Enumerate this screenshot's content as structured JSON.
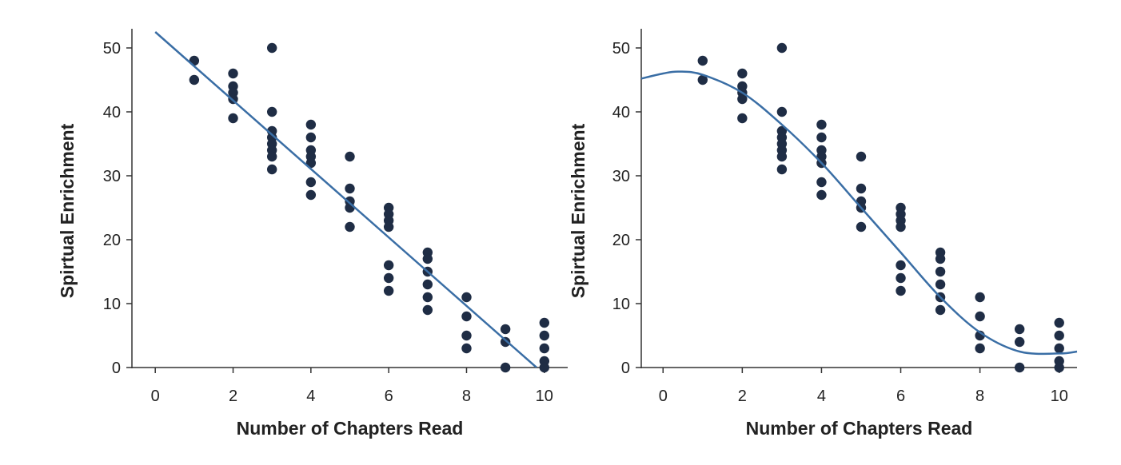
{
  "colors": {
    "point": "#1f2d45",
    "fit_line": "#3a6ea5",
    "axis": "#333333"
  },
  "chart_data": [
    {
      "type": "scatter",
      "fit": "linear",
      "title": "",
      "xlabel": "Number of Chapters Read",
      "ylabel": "Spirtual Enrichment",
      "xlim": [
        -0.6,
        10.6
      ],
      "ylim": [
        0,
        53
      ],
      "x_ticks": [
        0,
        2,
        4,
        6,
        8,
        10
      ],
      "y_ticks": [
        0,
        10,
        20,
        30,
        40,
        50
      ],
      "grid": false,
      "points": [
        [
          1,
          48
        ],
        [
          1,
          45
        ],
        [
          2,
          46
        ],
        [
          2,
          44
        ],
        [
          2,
          43
        ],
        [
          2,
          42
        ],
        [
          2,
          39
        ],
        [
          3,
          50
        ],
        [
          3,
          40
        ],
        [
          3,
          37
        ],
        [
          3,
          36
        ],
        [
          3,
          35
        ],
        [
          3,
          34
        ],
        [
          3,
          33
        ],
        [
          3,
          31
        ],
        [
          4,
          38
        ],
        [
          4,
          36
        ],
        [
          4,
          34
        ],
        [
          4,
          33
        ],
        [
          4,
          32
        ],
        [
          4,
          29
        ],
        [
          4,
          27
        ],
        [
          5,
          33
        ],
        [
          5,
          28
        ],
        [
          5,
          26
        ],
        [
          5,
          25
        ],
        [
          5,
          22
        ],
        [
          6,
          25
        ],
        [
          6,
          24
        ],
        [
          6,
          23
        ],
        [
          6,
          22
        ],
        [
          6,
          16
        ],
        [
          6,
          14
        ],
        [
          6,
          12
        ],
        [
          7,
          18
        ],
        [
          7,
          17
        ],
        [
          7,
          15
        ],
        [
          7,
          13
        ],
        [
          7,
          11
        ],
        [
          7,
          9
        ],
        [
          8,
          11
        ],
        [
          8,
          8
        ],
        [
          8,
          5
        ],
        [
          8,
          3
        ],
        [
          9,
          6
        ],
        [
          9,
          4
        ],
        [
          9,
          0
        ],
        [
          10,
          7
        ],
        [
          10,
          5
        ],
        [
          10,
          3
        ],
        [
          10,
          1
        ],
        [
          10,
          0
        ]
      ],
      "fit_line": {
        "x": [
          0,
          9.8
        ],
        "y": [
          52.5,
          0
        ]
      }
    },
    {
      "type": "scatter",
      "fit": "cubic",
      "title": "",
      "xlabel": "Number of Chapters Read",
      "ylabel": "Spirtual Enrichment",
      "xlim": [
        -0.55,
        10.45
      ],
      "ylim": [
        0,
        53
      ],
      "x_ticks": [
        0,
        2,
        4,
        6,
        8,
        10
      ],
      "y_ticks": [
        0,
        10,
        20,
        30,
        40,
        50
      ],
      "grid": false,
      "points": [
        [
          1,
          48
        ],
        [
          1,
          45
        ],
        [
          2,
          46
        ],
        [
          2,
          44
        ],
        [
          2,
          43
        ],
        [
          2,
          42
        ],
        [
          2,
          39
        ],
        [
          3,
          50
        ],
        [
          3,
          40
        ],
        [
          3,
          37
        ],
        [
          3,
          36
        ],
        [
          3,
          35
        ],
        [
          3,
          34
        ],
        [
          3,
          33
        ],
        [
          3,
          31
        ],
        [
          4,
          38
        ],
        [
          4,
          36
        ],
        [
          4,
          34
        ],
        [
          4,
          33
        ],
        [
          4,
          32
        ],
        [
          4,
          29
        ],
        [
          4,
          27
        ],
        [
          5,
          33
        ],
        [
          5,
          28
        ],
        [
          5,
          26
        ],
        [
          5,
          25
        ],
        [
          5,
          22
        ],
        [
          6,
          25
        ],
        [
          6,
          24
        ],
        [
          6,
          23
        ],
        [
          6,
          22
        ],
        [
          6,
          16
        ],
        [
          6,
          14
        ],
        [
          6,
          12
        ],
        [
          7,
          18
        ],
        [
          7,
          17
        ],
        [
          7,
          15
        ],
        [
          7,
          13
        ],
        [
          7,
          11
        ],
        [
          7,
          9
        ],
        [
          8,
          11
        ],
        [
          8,
          8
        ],
        [
          8,
          5
        ],
        [
          8,
          3
        ],
        [
          9,
          6
        ],
        [
          9,
          4
        ],
        [
          9,
          0
        ],
        [
          10,
          7
        ],
        [
          10,
          5
        ],
        [
          10,
          3
        ],
        [
          10,
          1
        ],
        [
          10,
          0
        ]
      ],
      "fit_curve": {
        "x": [
          -0.55,
          0,
          0.4,
          1,
          2,
          3,
          4,
          5,
          6,
          7,
          8,
          9,
          10,
          10.45
        ],
        "y": [
          45.2,
          46,
          46.3,
          45.8,
          43,
          38,
          32,
          25,
          18,
          11,
          5.5,
          2.5,
          2.2,
          2.5
        ]
      }
    }
  ]
}
